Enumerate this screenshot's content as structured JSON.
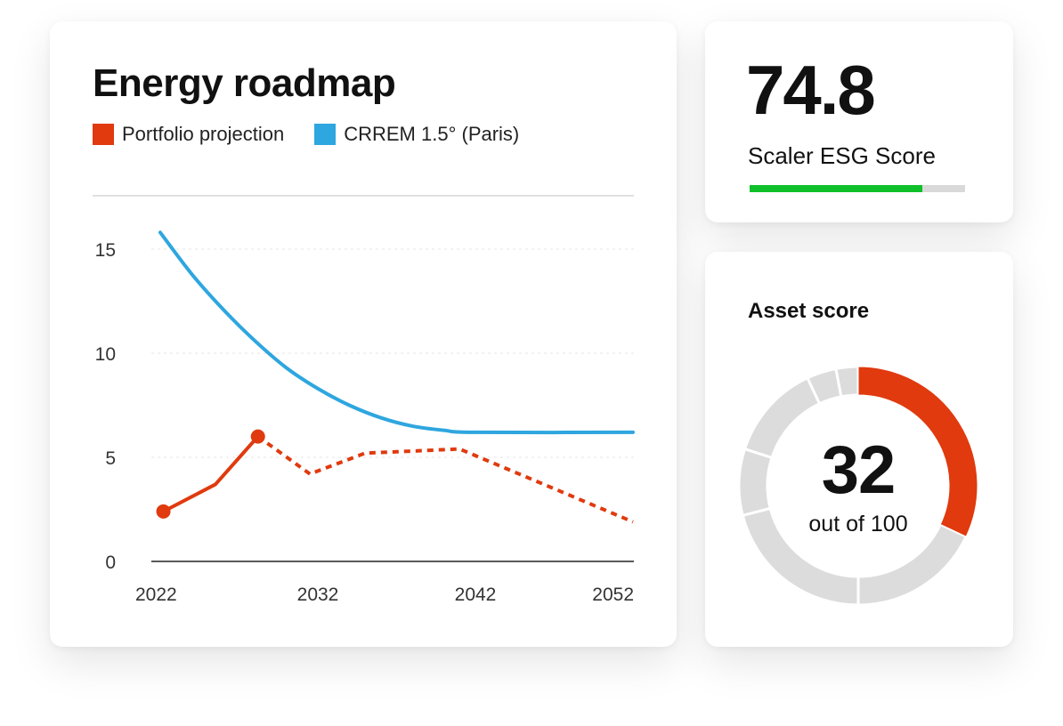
{
  "roadmap": {
    "title": "Energy roadmap",
    "legend": [
      {
        "label": "Portfolio projection",
        "color": "#e03a0e"
      },
      {
        "label": "CRREM 1.5° (Paris)",
        "color": "#2ea6df"
      }
    ]
  },
  "chart_data": {
    "type": "line",
    "title": "Energy roadmap",
    "xlabel": "",
    "ylabel": "",
    "xlim": [
      2022,
      2052
    ],
    "ylim": [
      0,
      16
    ],
    "x_ticks": [
      2022,
      2032,
      2042,
      2052
    ],
    "y_ticks": [
      0,
      5,
      10,
      15
    ],
    "grid": true,
    "legend_position": "top-left",
    "series": [
      {
        "name": "CRREM 1.5° (Paris)",
        "color": "#2ea6df",
        "style": "solid",
        "points": [
          [
            2022,
            15.8
          ],
          [
            2024,
            13.8
          ],
          [
            2026,
            12.1
          ],
          [
            2028,
            10.6
          ],
          [
            2030,
            9.3
          ],
          [
            2032,
            8.3
          ],
          [
            2034,
            7.5
          ],
          [
            2036,
            6.9
          ],
          [
            2038,
            6.5
          ],
          [
            2040,
            6.3
          ],
          [
            2042,
            6.2
          ],
          [
            2052,
            6.2
          ]
        ]
      },
      {
        "name": "Portfolio projection",
        "color": "#e03a0e",
        "style": "solid",
        "points": [
          [
            2022.2,
            2.4
          ],
          [
            2025.5,
            3.7
          ],
          [
            2028.2,
            6.0
          ]
        ]
      },
      {
        "name": "Portfolio projection",
        "color": "#e03a0e",
        "style": "dotted",
        "points": [
          [
            2028.2,
            6.0
          ],
          [
            2031.5,
            4.2
          ],
          [
            2035,
            5.2
          ],
          [
            2041,
            5.4
          ],
          [
            2052,
            1.9
          ]
        ]
      }
    ],
    "markers": [
      [
        2022.2,
        2.4
      ],
      [
        2028.2,
        6.0
      ]
    ]
  },
  "esg": {
    "value": "74.8",
    "label": "Scaler ESG Score",
    "progress": 0.8,
    "fill_color": "#10c02a",
    "track_color": "#d9d9d9"
  },
  "asset": {
    "title": "Asset score",
    "value": "32",
    "subtitle": "out of 100",
    "score": 32,
    "max": 100,
    "accent_color": "#e03a0e",
    "track_color": "#dcdcdc",
    "track_segments": [
      [
        32,
        50
      ],
      [
        50,
        71
      ],
      [
        71,
        80
      ],
      [
        80,
        93
      ],
      [
        93,
        97
      ],
      [
        97,
        100
      ]
    ]
  }
}
